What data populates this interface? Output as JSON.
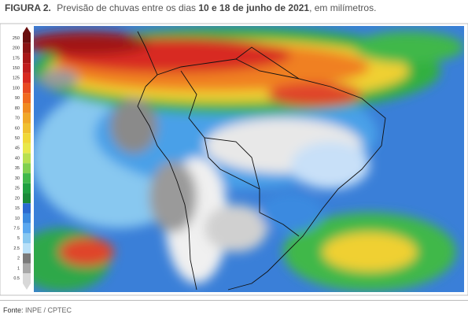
{
  "caption": {
    "label": "FIGURA 2.",
    "text_before": "Previsão de chuvas entre os dias ",
    "bold": "10 e 18 de junho de 2021",
    "text_after": ", em milímetros."
  },
  "legend": {
    "levels": [
      {
        "label": "250",
        "color": "#6a0f0f"
      },
      {
        "label": "200",
        "color": "#8a1414"
      },
      {
        "label": "175",
        "color": "#a81818"
      },
      {
        "label": "150",
        "color": "#c01e1e"
      },
      {
        "label": "125",
        "color": "#d82a20"
      },
      {
        "label": "100",
        "color": "#e84a22"
      },
      {
        "label": "90",
        "color": "#f06a20"
      },
      {
        "label": "80",
        "color": "#f08a20"
      },
      {
        "label": "70",
        "color": "#f0a828"
      },
      {
        "label": "60",
        "color": "#f0c030"
      },
      {
        "label": "50",
        "color": "#f0d838"
      },
      {
        "label": "45",
        "color": "#e8e84a"
      },
      {
        "label": "40",
        "color": "#b8e050"
      },
      {
        "label": "35",
        "color": "#80d050"
      },
      {
        "label": "30",
        "color": "#40b84a"
      },
      {
        "label": "25",
        "color": "#20a040"
      },
      {
        "label": "20",
        "color": "#1a8a38"
      },
      {
        "label": "15",
        "color": "#2a6ad0"
      },
      {
        "label": "10",
        "color": "#3a8ae0"
      },
      {
        "label": "7.5",
        "color": "#5aa8f0"
      },
      {
        "label": "5",
        "color": "#88c8f0"
      },
      {
        "label": "2.5",
        "color": "#b8e0f8"
      },
      {
        "label": "2",
        "color": "#7a7a7a"
      },
      {
        "label": "1",
        "color": "#a8a8a8"
      },
      {
        "label": "0.5",
        "color": "#d8d8d8"
      }
    ]
  },
  "source": {
    "label": "Fonte:",
    "text": "INPE / CPTEC"
  }
}
